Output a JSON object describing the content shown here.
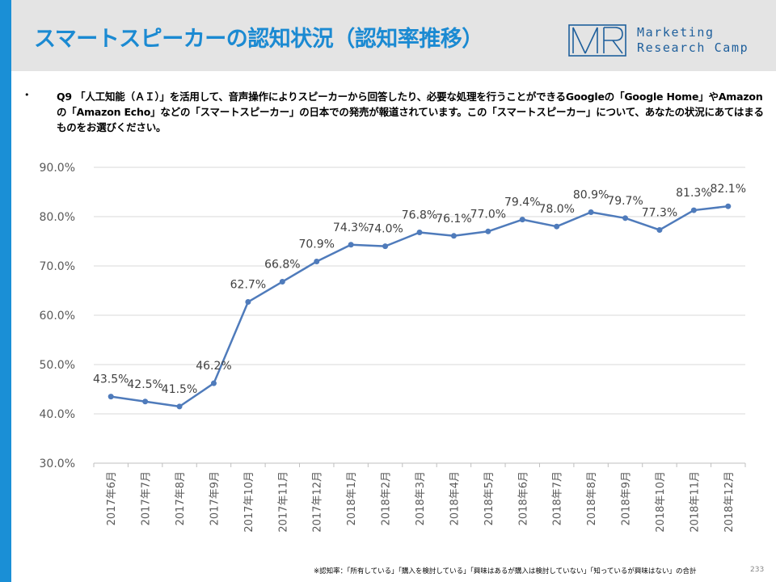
{
  "header": {
    "title": "スマートスピーカーの認知状況（認知率推移）",
    "logo_text_line1": "Marketing",
    "logo_text_line2": "Research Camp"
  },
  "question": {
    "bullet": "•",
    "text": "Q9 「人工知能（ＡＩ）」を活用して、音声操作によりスピーカーから回答したり、必要な処理を行うことができるGoogleの「Google Home」やAmazonの「Amazon Echo」などの「スマートスピーカー」の日本での発売が報道されています。この「スマートスピーカー」について、あなたの状況にあてはまるものをお選びください。"
  },
  "chart_data": {
    "type": "line",
    "categories": [
      "2017年6月",
      "2017年7月",
      "2017年8月",
      "2017年9月",
      "2017年10月",
      "2017年11月",
      "2017年12月",
      "2018年1月",
      "2018年2月",
      "2018年3月",
      "2018年4月",
      "2018年5月",
      "2018年6月",
      "2018年7月",
      "2018年8月",
      "2018年9月",
      "2018年10月",
      "2018年11月",
      "2018年12月"
    ],
    "series": [
      {
        "values": [
          43.5,
          42.5,
          41.5,
          46.2,
          62.7,
          66.8,
          70.9,
          74.3,
          74.0,
          76.8,
          76.1,
          77.0,
          79.4,
          78.0,
          80.9,
          79.7,
          77.3,
          81.3,
          82.1
        ],
        "color": "#4f7bbb"
      }
    ],
    "data_labels": [
      "43.5%",
      "42.5%",
      "41.5%",
      "46.2%",
      "62.7%",
      "66.8%",
      "70.9%",
      "74.3%",
      "74.0%",
      "76.8%",
      "76.1%",
      "77.0%",
      "79.4%",
      "78.0%",
      "80.9%",
      "79.7%",
      "77.3%",
      "81.3%",
      "82.1%"
    ],
    "y_ticks": [
      "30.0%",
      "40.0%",
      "50.0%",
      "60.0%",
      "70.0%",
      "80.0%",
      "90.0%"
    ],
    "ylim": [
      30,
      90
    ],
    "grid": true,
    "xlabel": "",
    "ylabel": ""
  },
  "footnote": "※認知率：「所有している」「購入を検討している」「興味はあるが購入は検討していない」「知っているが興味はない」の合計",
  "page_number": "233"
}
